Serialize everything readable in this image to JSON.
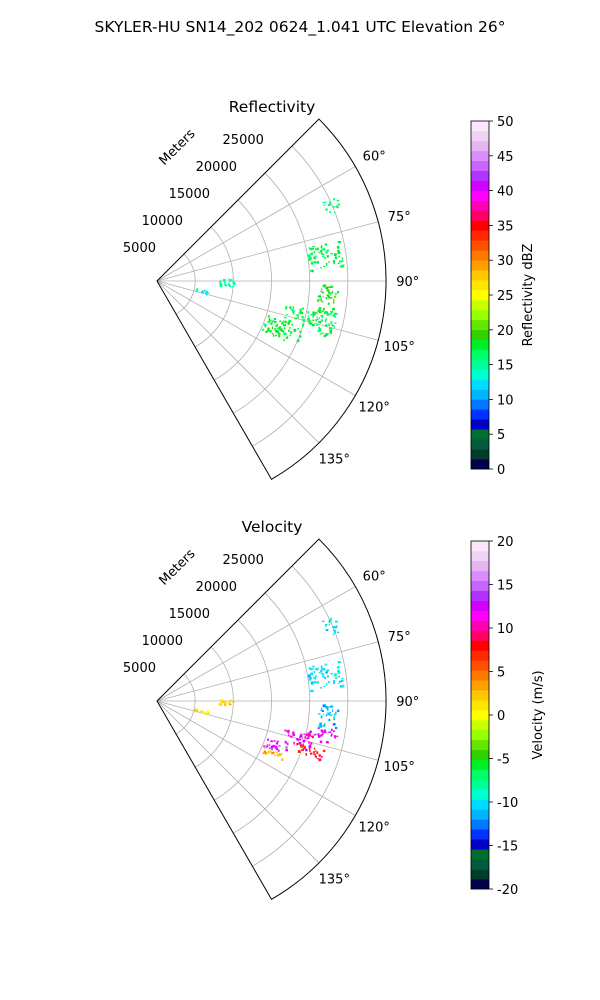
{
  "figure": {
    "suptitle": "SKYLER-HU  SN14_202  0624_1.041 UTC Elevation 26°"
  },
  "chart_data": [
    {
      "type": "heatmap",
      "projection": "polar-sector",
      "title": "Reflectivity",
      "range_label": "Meters",
      "azimuth_range_deg": [
        45,
        150
      ],
      "range_max_m": 30000,
      "range_ticks": [
        "5000",
        "10000",
        "15000",
        "20000",
        "25000"
      ],
      "range_tick_values": [
        5000,
        10000,
        15000,
        20000,
        25000
      ],
      "azimuth_ticks": [
        "60°",
        "75°",
        "90°",
        "105°",
        "120°",
        "135°"
      ],
      "azimuth_tick_values": [
        60,
        75,
        90,
        105,
        120,
        135
      ],
      "grid": true,
      "colorbar": {
        "label": "Reflectivity dBZ",
        "ticks": [
          "0",
          "5",
          "10",
          "15",
          "20",
          "25",
          "30",
          "35",
          "40",
          "45",
          "50"
        ],
        "range": [
          0,
          50
        ],
        "colors": [
          "#00004c",
          "#003c2d",
          "#005a3c",
          "#006e2d",
          "#0000c8",
          "#0032ff",
          "#0078ff",
          "#00b4ff",
          "#00dcff",
          "#00ffd2",
          "#00ff96",
          "#00ff64",
          "#00f028",
          "#32d200",
          "#64e600",
          "#96ff00",
          "#c8ff00",
          "#ffff00",
          "#ffe600",
          "#ffc800",
          "#ffa000",
          "#ff7800",
          "#ff5000",
          "#ff2800",
          "#ff0000",
          "#ff0064",
          "#ff00b4",
          "#ff00ff",
          "#d200ff",
          "#b432ff",
          "#c864ff",
          "#dc8cff",
          "#e6b4f0",
          "#f0d2f5",
          "#fae6fa"
        ]
      },
      "echo_regions": [
        {
          "range_m": [
            20000,
            24500
          ],
          "az_deg": [
            77,
            86
          ],
          "value": 17
        },
        {
          "range_m": [
            21000,
            24000
          ],
          "az_deg": [
            91,
            101
          ],
          "value": 19
        },
        {
          "range_m": [
            17000,
            24000
          ],
          "az_deg": [
            100,
            108
          ],
          "value": 17
        },
        {
          "range_m": [
            15000,
            20000
          ],
          "az_deg": [
            107,
            115
          ],
          "value": 18
        },
        {
          "range_m": [
            24000,
            26000
          ],
          "az_deg": [
            64,
            69
          ],
          "value": 16
        },
        {
          "range_m": [
            8000,
            10000
          ],
          "az_deg": [
            88,
            94
          ],
          "value": 15
        },
        {
          "range_m": [
            5000,
            7000
          ],
          "az_deg": [
            100,
            104
          ],
          "value": 14
        }
      ]
    },
    {
      "type": "heatmap",
      "projection": "polar-sector",
      "title": "Velocity",
      "range_label": "Meters",
      "azimuth_range_deg": [
        45,
        150
      ],
      "range_max_m": 30000,
      "range_ticks": [
        "5000",
        "10000",
        "15000",
        "20000",
        "25000"
      ],
      "range_tick_values": [
        5000,
        10000,
        15000,
        20000,
        25000
      ],
      "azimuth_ticks": [
        "60°",
        "75°",
        "90°",
        "105°",
        "120°",
        "135°"
      ],
      "azimuth_tick_values": [
        60,
        75,
        90,
        105,
        120,
        135
      ],
      "grid": true,
      "colorbar": {
        "label": "Velocity (m/s)",
        "ticks": [
          "-20",
          "-15",
          "-10",
          "-5",
          "0",
          "5",
          "10",
          "15",
          "20"
        ],
        "range": [
          -20,
          20
        ],
        "colors": [
          "#00004c",
          "#003c2d",
          "#005a3c",
          "#006e2d",
          "#0000c8",
          "#0032ff",
          "#0078ff",
          "#00b4ff",
          "#00dcff",
          "#00ffd2",
          "#00ff96",
          "#00ff64",
          "#00f028",
          "#32d200",
          "#64e600",
          "#96ff00",
          "#c8ff00",
          "#ffff00",
          "#ffe600",
          "#ffc800",
          "#ffa000",
          "#ff7800",
          "#ff5000",
          "#ff2800",
          "#ff0000",
          "#ff0064",
          "#ff00b4",
          "#ff00ff",
          "#d200ff",
          "#b432ff",
          "#c864ff",
          "#dc8cff",
          "#e6b4f0",
          "#f0d2f5",
          "#fae6fa"
        ]
      },
      "echo_regions": [
        {
          "range_m": [
            20000,
            24500
          ],
          "az_deg": [
            77,
            86
          ],
          "value": -10
        },
        {
          "range_m": [
            21000,
            24000
          ],
          "az_deg": [
            91,
            99
          ],
          "value": -11
        },
        {
          "range_m": [
            20000,
            24000
          ],
          "az_deg": [
            99,
            104
          ],
          "value": 12
        },
        {
          "range_m": [
            17000,
            21000
          ],
          "az_deg": [
            102,
            108
          ],
          "value": 11
        },
        {
          "range_m": [
            19000,
            23000
          ],
          "az_deg": [
            106,
            110
          ],
          "value": 8
        },
        {
          "range_m": [
            15000,
            18000
          ],
          "az_deg": [
            108,
            113
          ],
          "value": 13
        },
        {
          "range_m": [
            15000,
            18000
          ],
          "az_deg": [
            112,
            116
          ],
          "value": 3
        },
        {
          "range_m": [
            24000,
            26000
          ],
          "az_deg": [
            64,
            69
          ],
          "value": -10
        },
        {
          "range_m": [
            8000,
            10000
          ],
          "az_deg": [
            88,
            94
          ],
          "value": 2
        },
        {
          "range_m": [
            5000,
            7000
          ],
          "az_deg": [
            100,
            104
          ],
          "value": 1
        }
      ]
    }
  ]
}
